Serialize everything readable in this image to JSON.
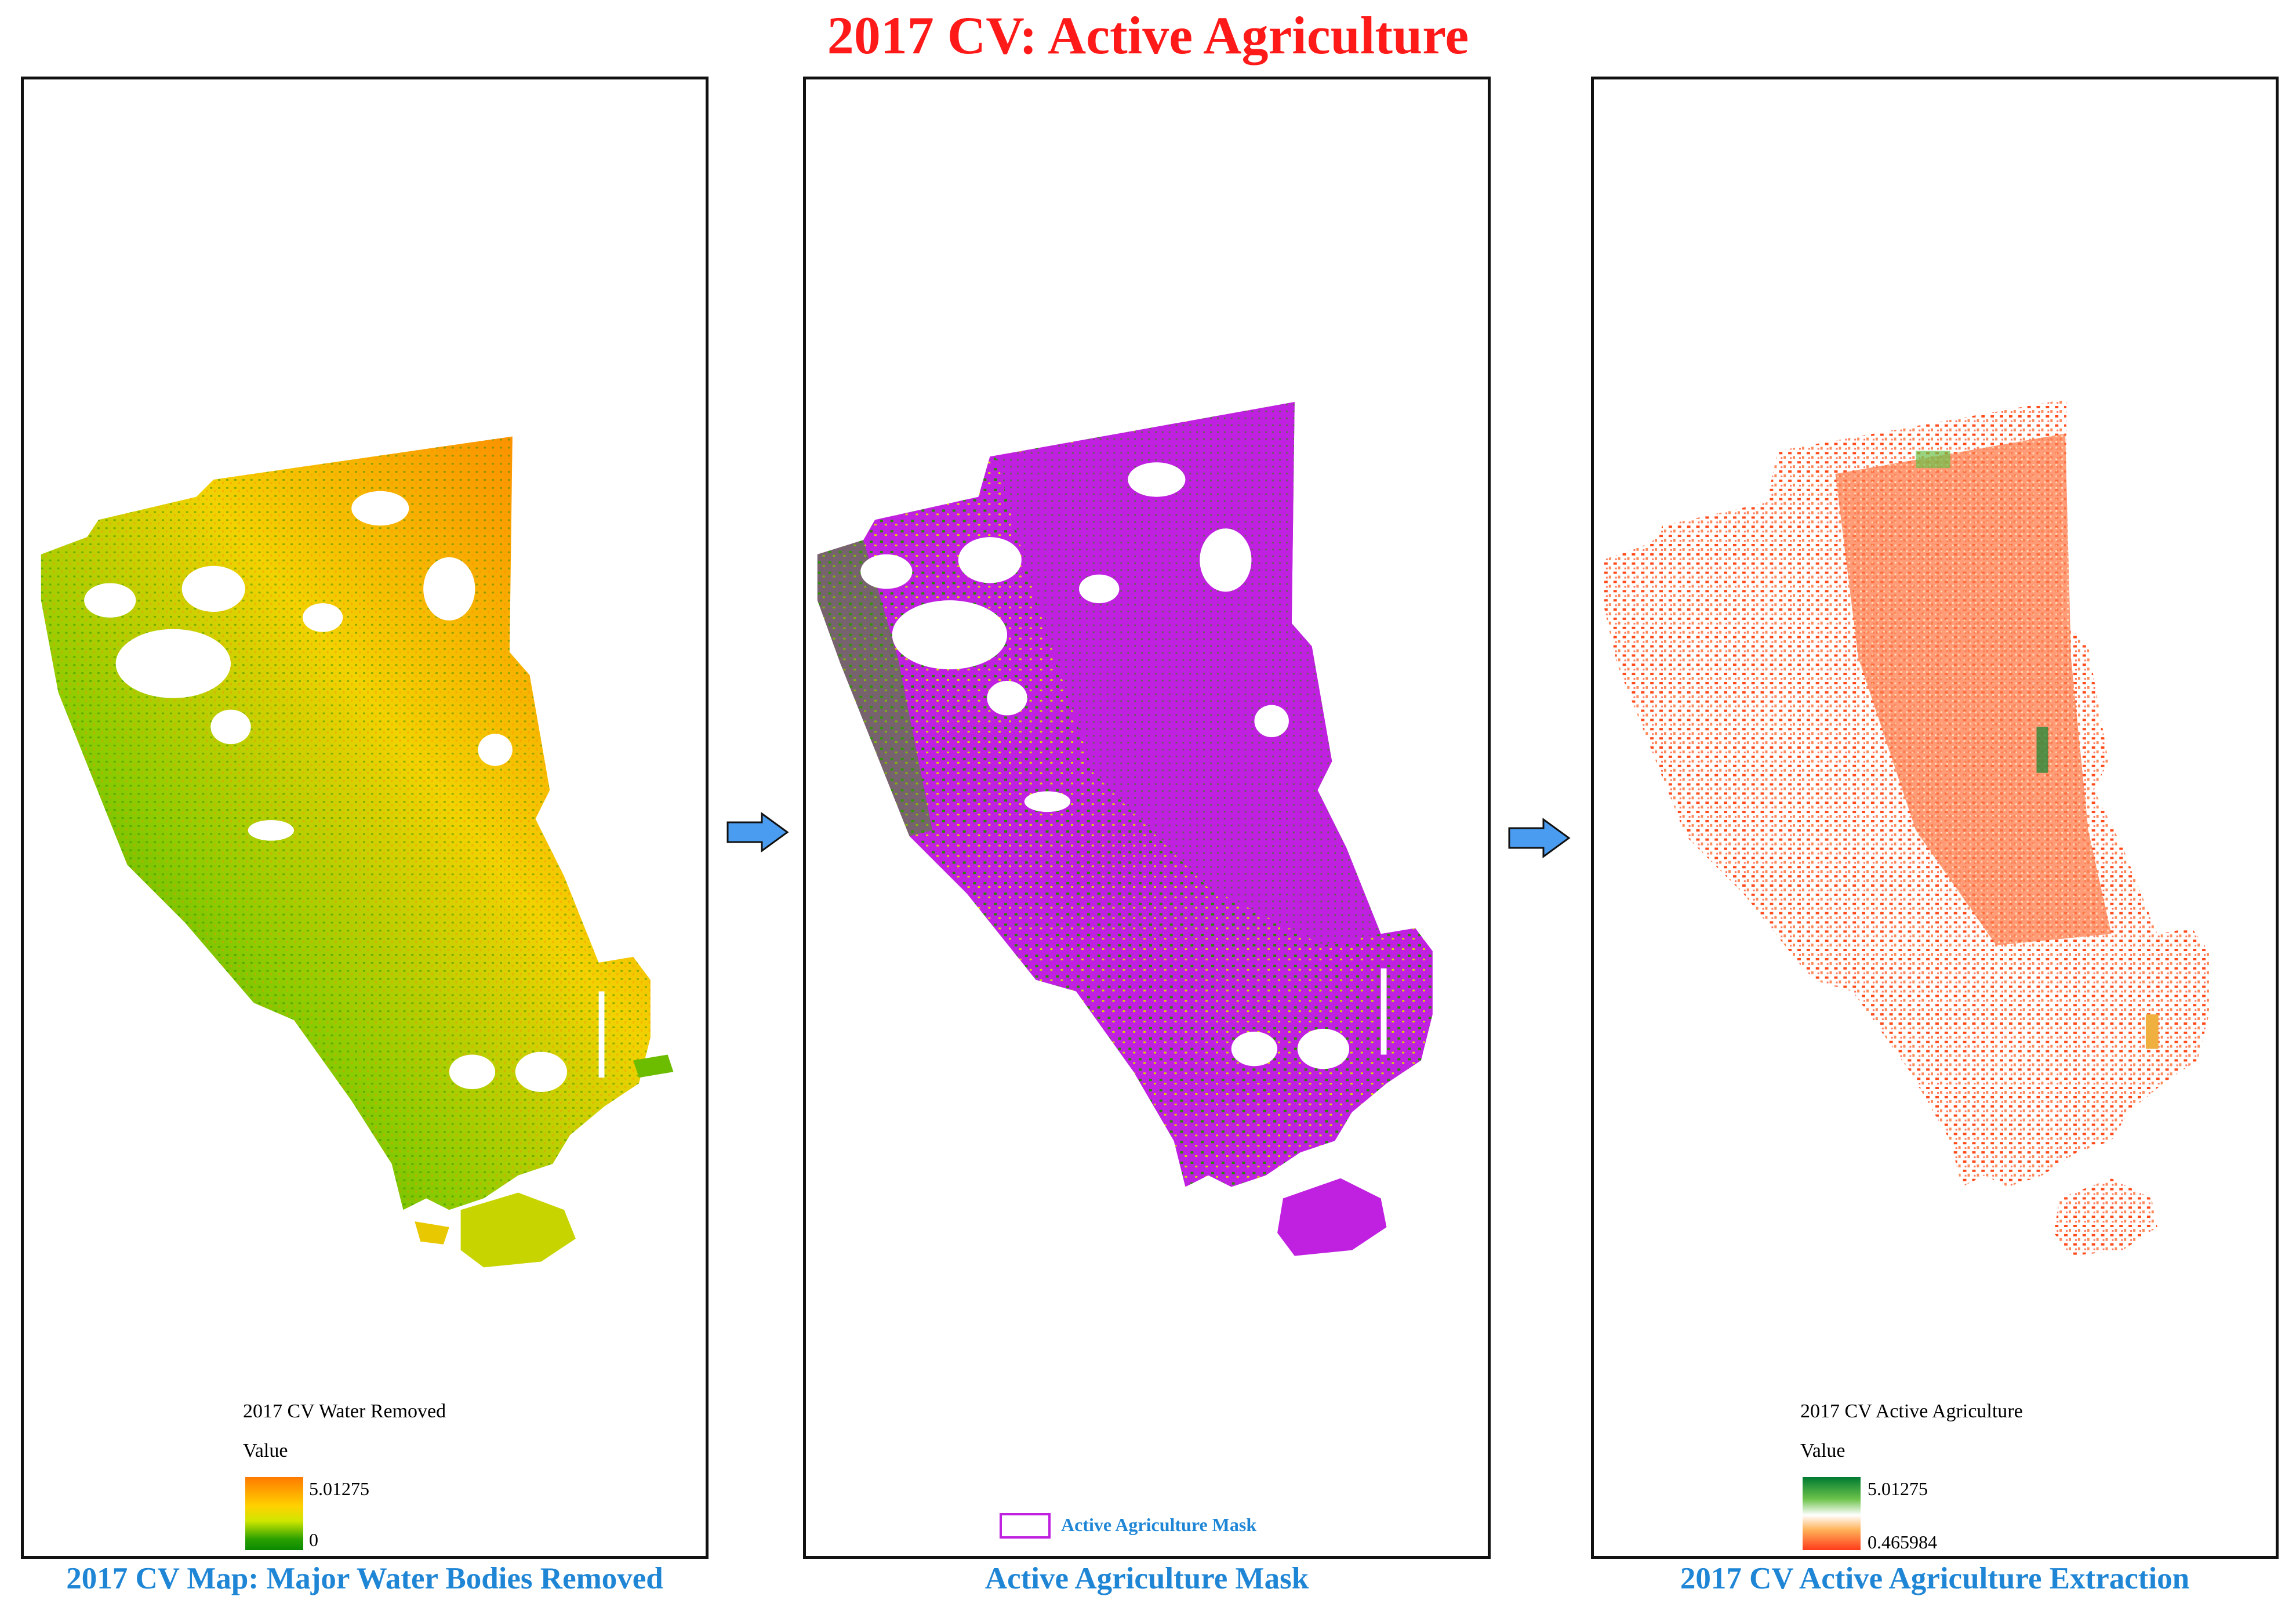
{
  "title": "2017 CV: Active Agriculture",
  "panels": [
    {
      "caption": "2017 CV Map: Major Water Bodies Removed",
      "legend": {
        "title": "2017 CV Water Removed",
        "subtitle": "Value",
        "max": "5.01275",
        "min": "0"
      },
      "colors": {
        "high": "#ff7a00",
        "mid": "#ffd200",
        "low": "#0b8a00"
      }
    },
    {
      "caption": "Active Agriculture Mask",
      "legend": {
        "label": "Active Agriculture Mask"
      },
      "colors": {
        "mask": "#c020e0",
        "background": "#2aa000"
      }
    },
    {
      "caption": "2017 CV Active Agriculture Extraction",
      "legend": {
        "title": "2017 CV Active Agriculture",
        "subtitle": "Value",
        "max": "5.01275",
        "min": "0.465984"
      },
      "colors": {
        "high": "#007a32",
        "low": "#ff3a1a"
      }
    }
  ],
  "arrow_color": "#4a9cf0"
}
